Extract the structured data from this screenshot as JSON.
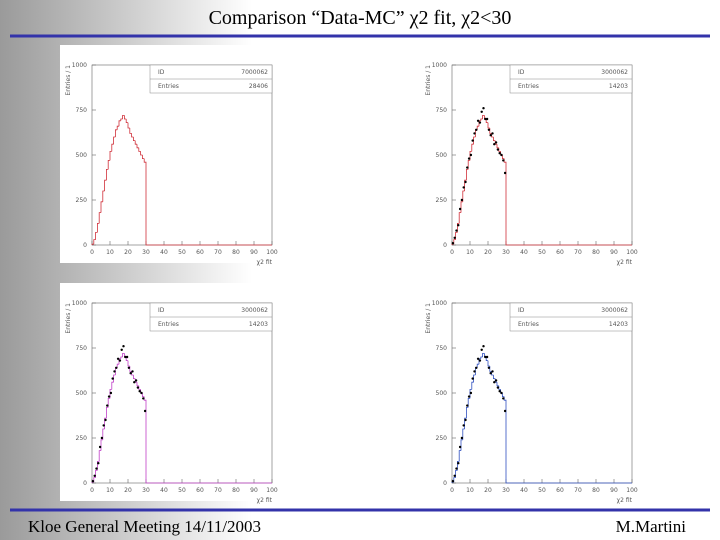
{
  "title": "Comparison “Data-MC” χ2 fit, χ2<30",
  "footer": {
    "left": "Kloe General Meeting 14/11/2003",
    "right": "M.Martini"
  },
  "chart_data": [
    {
      "type": "histogram",
      "y_label": "Entries / 1",
      "x_label": "χ2 fit",
      "stats": {
        "id_label": "ID",
        "id": 7000062,
        "entries_label": "Entries",
        "entries": 28406
      },
      "bins": [
        0,
        1,
        2,
        3,
        4,
        5,
        6,
        7,
        8,
        9,
        10,
        11,
        12,
        13,
        14,
        15,
        16,
        17,
        18,
        19,
        20,
        21,
        22,
        23,
        24,
        25,
        26,
        27,
        28,
        29,
        30
      ],
      "xlim": [
        0,
        100
      ],
      "xticks": [
        0,
        10,
        20,
        30,
        40,
        50,
        60,
        70,
        80,
        90,
        100
      ],
      "ylim": [
        0,
        1000
      ],
      "yticks": [
        0,
        250,
        500,
        750,
        1000
      ],
      "series": [
        {
          "color": "#d0303a",
          "style": "line",
          "values": [
            5,
            30,
            70,
            120,
            180,
            240,
            300,
            360,
            420,
            470,
            520,
            560,
            600,
            640,
            660,
            690,
            700,
            720,
            700,
            680,
            650,
            620,
            600,
            580,
            560,
            540,
            520,
            500,
            480,
            460
          ]
        }
      ]
    },
    {
      "type": "histogram",
      "y_label": "Entries / 1",
      "x_label": "χ2 fit",
      "stats": {
        "id_label": "ID",
        "id": 3000062,
        "entries_label": "Entries",
        "entries": 14203
      },
      "bins": [
        0,
        1,
        2,
        3,
        4,
        5,
        6,
        7,
        8,
        9,
        10,
        11,
        12,
        13,
        14,
        15,
        16,
        17,
        18,
        19,
        20,
        21,
        22,
        23,
        24,
        25,
        26,
        27,
        28,
        29,
        30
      ],
      "xlim": [
        0,
        100
      ],
      "xticks": [
        0,
        10,
        20,
        30,
        40,
        50,
        60,
        70,
        80,
        90,
        100
      ],
      "ylim": [
        0,
        1000
      ],
      "yticks": [
        0,
        250,
        500,
        750,
        1000
      ],
      "series": [
        {
          "color": "#d0303a",
          "style": "line",
          "values": [
            5,
            30,
            70,
            120,
            180,
            240,
            300,
            360,
            420,
            470,
            520,
            560,
            600,
            640,
            660,
            690,
            700,
            720,
            700,
            680,
            650,
            620,
            600,
            580,
            560,
            540,
            520,
            500,
            480,
            460
          ]
        },
        {
          "color": "#000000",
          "style": "points",
          "values": [
            10,
            40,
            80,
            110,
            200,
            250,
            320,
            350,
            430,
            480,
            500,
            580,
            620,
            640,
            690,
            680,
            740,
            760,
            700,
            700,
            640,
            610,
            620,
            560,
            570,
            530,
            510,
            500,
            470,
            400
          ]
        }
      ]
    },
    {
      "type": "histogram",
      "y_label": "Entries / 1",
      "x_label": "χ2 fit",
      "stats": {
        "id_label": "ID",
        "id": 3000062,
        "entries_label": "Entries",
        "entries": 14203
      },
      "bins": [
        0,
        1,
        2,
        3,
        4,
        5,
        6,
        7,
        8,
        9,
        10,
        11,
        12,
        13,
        14,
        15,
        16,
        17,
        18,
        19,
        20,
        21,
        22,
        23,
        24,
        25,
        26,
        27,
        28,
        29,
        30
      ],
      "xlim": [
        0,
        100
      ],
      "xticks": [
        0,
        10,
        20,
        30,
        40,
        50,
        60,
        70,
        80,
        90,
        100
      ],
      "ylim": [
        0,
        1000
      ],
      "yticks": [
        0,
        250,
        500,
        750,
        1000
      ],
      "series": [
        {
          "color": "#c040c8",
          "style": "line",
          "values": [
            5,
            30,
            70,
            120,
            180,
            240,
            300,
            360,
            420,
            470,
            520,
            560,
            600,
            640,
            660,
            690,
            700,
            720,
            700,
            680,
            650,
            620,
            600,
            580,
            560,
            540,
            520,
            500,
            480,
            460
          ]
        },
        {
          "color": "#000000",
          "style": "points",
          "values": [
            10,
            40,
            80,
            110,
            200,
            250,
            320,
            350,
            430,
            480,
            500,
            580,
            620,
            640,
            690,
            680,
            740,
            760,
            700,
            700,
            640,
            610,
            620,
            560,
            570,
            530,
            510,
            500,
            470,
            400
          ]
        }
      ]
    },
    {
      "type": "histogram",
      "y_label": "Entries / 1",
      "x_label": "χ2 fit",
      "stats": {
        "id_label": "ID",
        "id": 3000062,
        "entries_label": "Entries",
        "entries": 14203
      },
      "bins": [
        0,
        1,
        2,
        3,
        4,
        5,
        6,
        7,
        8,
        9,
        10,
        11,
        12,
        13,
        14,
        15,
        16,
        17,
        18,
        19,
        20,
        21,
        22,
        23,
        24,
        25,
        26,
        27,
        28,
        29,
        30
      ],
      "xlim": [
        0,
        100
      ],
      "xticks": [
        0,
        10,
        20,
        30,
        40,
        50,
        60,
        70,
        80,
        90,
        100
      ],
      "ylim": [
        0,
        1000
      ],
      "yticks": [
        0,
        250,
        500,
        750,
        1000
      ],
      "series": [
        {
          "color": "#3050c0",
          "style": "line",
          "values": [
            5,
            30,
            70,
            120,
            180,
            240,
            300,
            360,
            420,
            470,
            520,
            560,
            600,
            640,
            660,
            690,
            700,
            720,
            700,
            680,
            650,
            620,
            600,
            580,
            560,
            540,
            520,
            500,
            480,
            460
          ]
        },
        {
          "color": "#000000",
          "style": "points",
          "values": [
            10,
            40,
            80,
            110,
            200,
            250,
            320,
            350,
            430,
            480,
            500,
            580,
            620,
            640,
            690,
            680,
            740,
            760,
            700,
            700,
            640,
            610,
            620,
            560,
            570,
            530,
            510,
            500,
            470,
            400
          ]
        }
      ]
    }
  ]
}
